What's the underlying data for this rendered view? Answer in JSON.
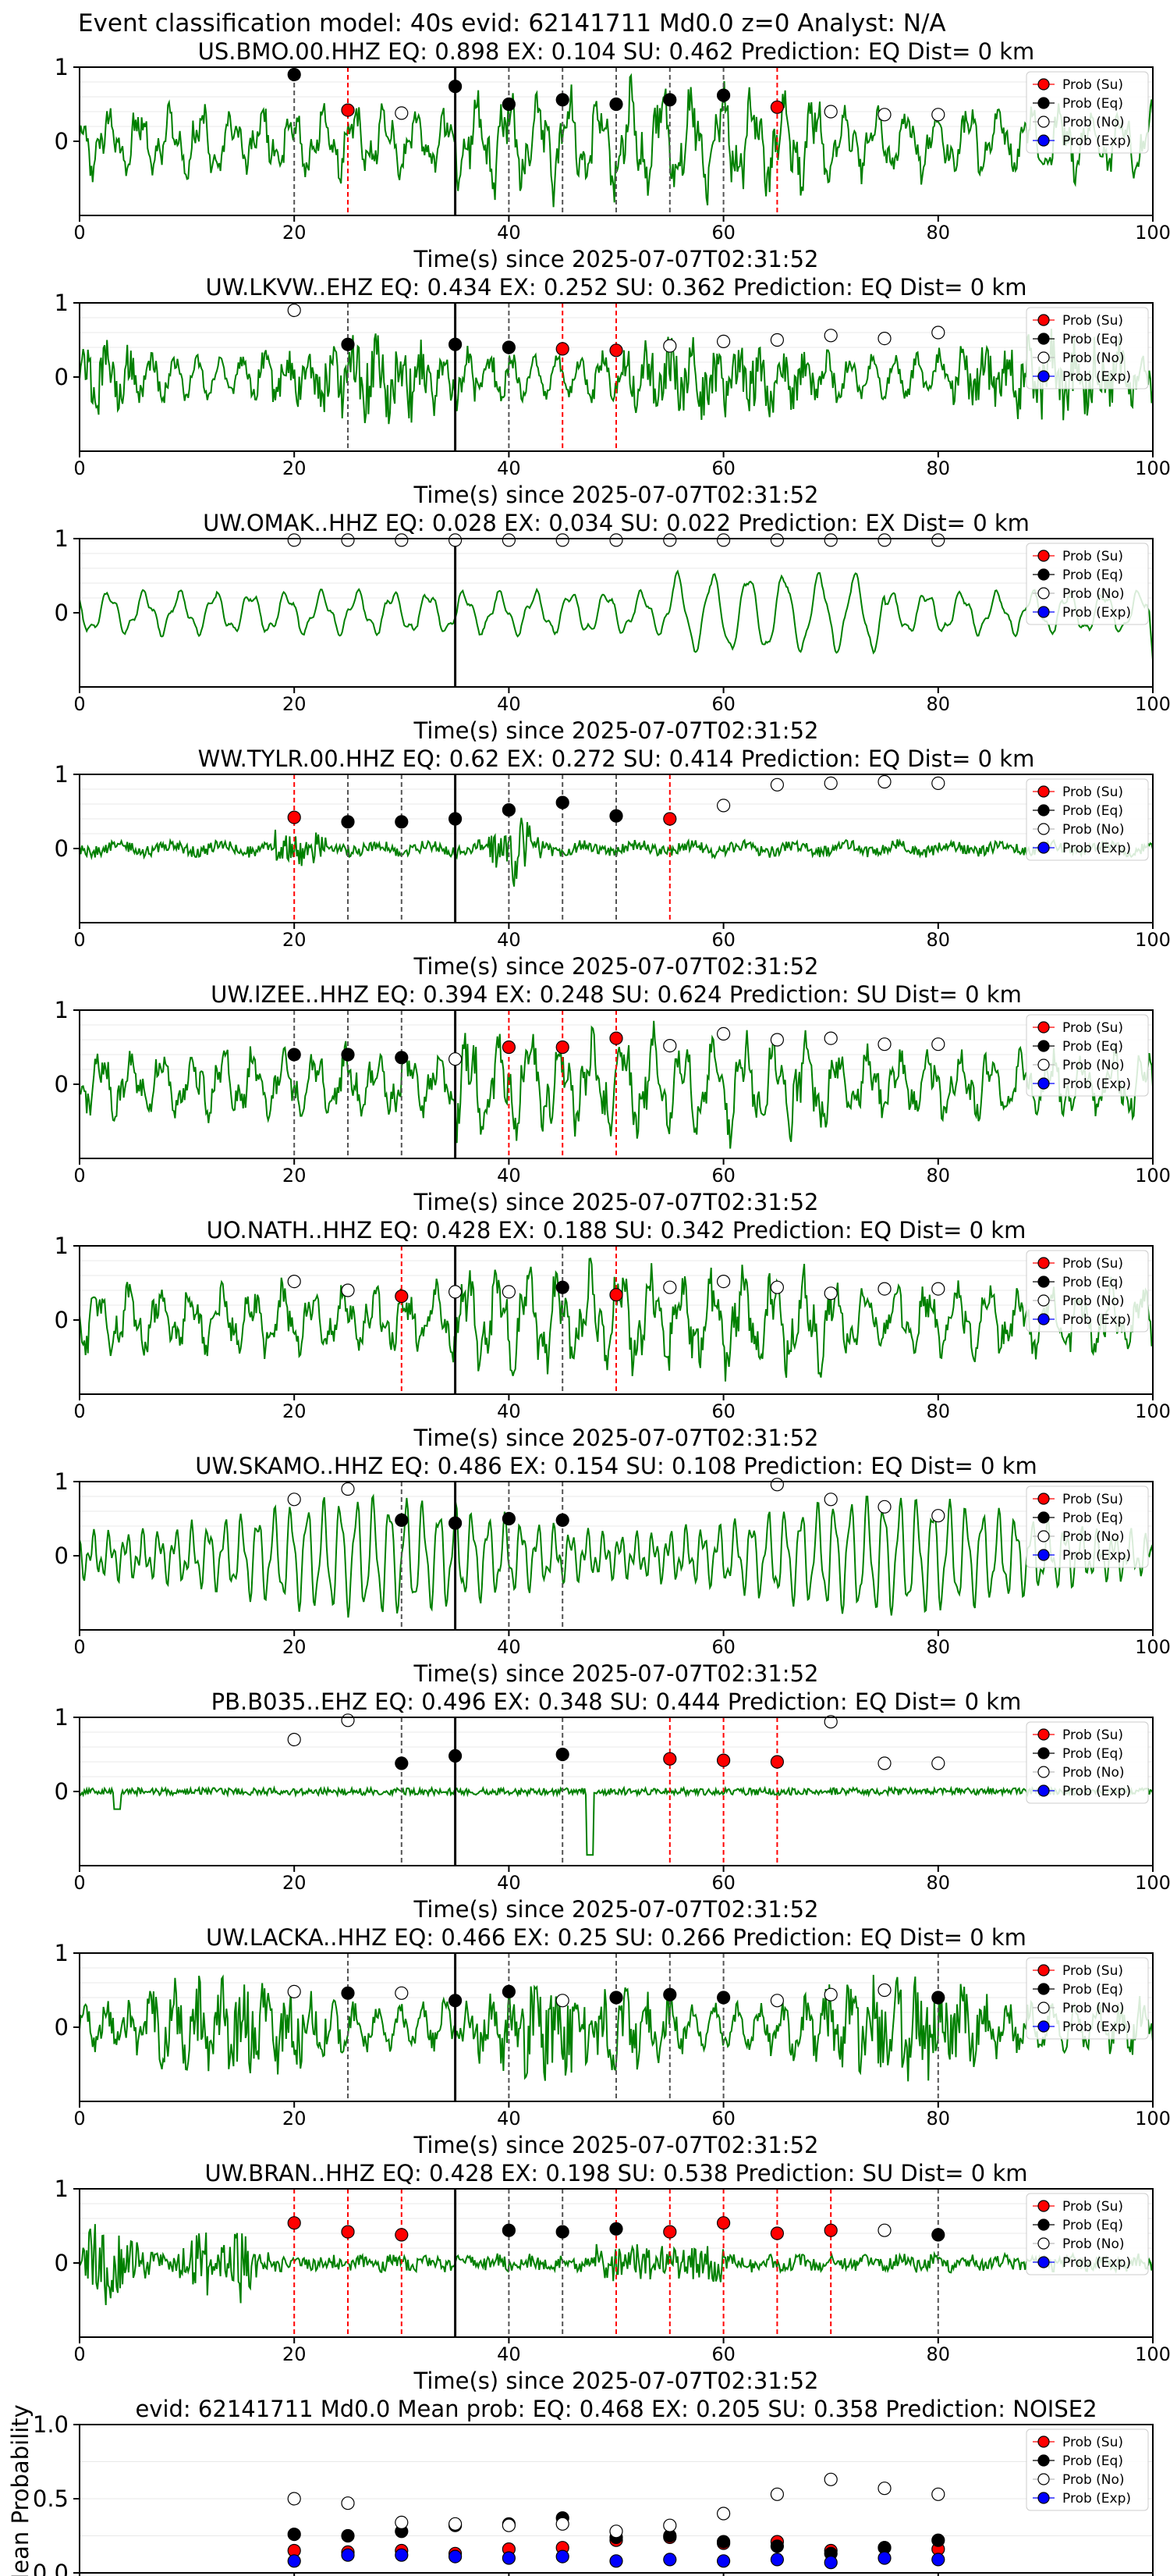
{
  "figure_title": "Event classification model: 40s evid: 62141711 Md0.0 z=0 Analyst: N/A",
  "colors": {
    "waveform": "#008000",
    "su": "#ff0000",
    "eq": "#000000",
    "no": "#ffffff",
    "exp": "#0000ff",
    "su_line": "#ff0000",
    "eq_line": "#555555",
    "origin_line": "#000000"
  },
  "legend_labels": [
    "Prob (Su)",
    "Prob (Eq)",
    "Prob (No)",
    "Prob (Exp)"
  ],
  "xlabel": "Time(s) since 2025-07-07T02:31:52",
  "xticks": [
    "0",
    "20",
    "40",
    "60",
    "80",
    "100"
  ],
  "yticks": [
    "0",
    "1"
  ],
  "origin_time_s": 35,
  "chart_data": [
    {
      "type": "line",
      "title": "US.BMO.00.HHZ   EQ: 0.898  EX: 0.104  SU: 0.462   Prediction: EQ    Dist= 0 km",
      "xlim": [
        0,
        100
      ],
      "ylim": [
        -1,
        1
      ],
      "waveform_style": "broadband",
      "su_lines": [
        25,
        65
      ],
      "eq_lines": [
        20,
        35,
        40,
        45,
        50,
        55,
        60
      ],
      "points": [
        {
          "t": 20,
          "c": "eq",
          "v": 0.9
        },
        {
          "t": 25,
          "c": "su",
          "v": 0.42
        },
        {
          "t": 30,
          "c": "no",
          "v": 0.38
        },
        {
          "t": 35,
          "c": "eq",
          "v": 0.74
        },
        {
          "t": 40,
          "c": "eq",
          "v": 0.5
        },
        {
          "t": 45,
          "c": "eq",
          "v": 0.56
        },
        {
          "t": 50,
          "c": "eq",
          "v": 0.5
        },
        {
          "t": 55,
          "c": "eq",
          "v": 0.56
        },
        {
          "t": 60,
          "c": "eq",
          "v": 0.62
        },
        {
          "t": 65,
          "c": "su",
          "v": 0.46
        },
        {
          "t": 70,
          "c": "no",
          "v": 0.4
        },
        {
          "t": 75,
          "c": "no",
          "v": 0.36
        },
        {
          "t": 80,
          "c": "no",
          "v": 0.36
        }
      ]
    },
    {
      "type": "line",
      "title": "UW.LKVW..EHZ   EQ: 0.434  EX: 0.252  SU: 0.362   Prediction: EQ    Dist= 0 km",
      "xlim": [
        0,
        100
      ],
      "ylim": [
        -1,
        1
      ],
      "waveform_style": "noisy",
      "su_lines": [
        45,
        50
      ],
      "eq_lines": [
        25,
        35,
        40
      ],
      "points": [
        {
          "t": 20,
          "c": "no",
          "v": 0.9
        },
        {
          "t": 25,
          "c": "eq",
          "v": 0.44
        },
        {
          "t": 35,
          "c": "eq",
          "v": 0.44
        },
        {
          "t": 40,
          "c": "eq",
          "v": 0.4
        },
        {
          "t": 45,
          "c": "su",
          "v": 0.38
        },
        {
          "t": 50,
          "c": "su",
          "v": 0.36
        },
        {
          "t": 55,
          "c": "no",
          "v": 0.42
        },
        {
          "t": 60,
          "c": "no",
          "v": 0.48
        },
        {
          "t": 65,
          "c": "no",
          "v": 0.5
        },
        {
          "t": 70,
          "c": "no",
          "v": 0.56
        },
        {
          "t": 75,
          "c": "no",
          "v": 0.52
        },
        {
          "t": 80,
          "c": "no",
          "v": 0.6
        }
      ]
    },
    {
      "type": "line",
      "title": "UW.OMAK..HHZ   EQ: 0.028  EX: 0.034  SU: 0.022   Prediction: EX    Dist= 0 km",
      "xlim": [
        0,
        100
      ],
      "ylim": [
        -1,
        1
      ],
      "waveform_style": "smooth",
      "su_lines": [],
      "eq_lines": [
        35
      ],
      "points": [
        {
          "t": 20,
          "c": "no",
          "v": 0.98
        },
        {
          "t": 25,
          "c": "no",
          "v": 0.98
        },
        {
          "t": 30,
          "c": "no",
          "v": 0.98
        },
        {
          "t": 35,
          "c": "no",
          "v": 0.98
        },
        {
          "t": 40,
          "c": "no",
          "v": 0.98
        },
        {
          "t": 45,
          "c": "no",
          "v": 0.98
        },
        {
          "t": 50,
          "c": "no",
          "v": 0.98
        },
        {
          "t": 55,
          "c": "no",
          "v": 0.98
        },
        {
          "t": 60,
          "c": "no",
          "v": 0.98
        },
        {
          "t": 65,
          "c": "no",
          "v": 0.98
        },
        {
          "t": 70,
          "c": "no",
          "v": 0.98
        },
        {
          "t": 75,
          "c": "no",
          "v": 0.98
        },
        {
          "t": 80,
          "c": "no",
          "v": 0.98
        }
      ]
    },
    {
      "type": "line",
      "title": "WW.TYLR.00.HHZ   EQ: 0.62  EX: 0.272  SU: 0.414   Prediction: EQ    Dist= 0 km",
      "xlim": [
        0,
        100
      ],
      "ylim": [
        -1,
        1
      ],
      "waveform_style": "quiet_burst",
      "su_lines": [
        20,
        55
      ],
      "eq_lines": [
        25,
        30,
        35,
        40,
        45,
        50
      ],
      "points": [
        {
          "t": 20,
          "c": "su",
          "v": 0.42
        },
        {
          "t": 25,
          "c": "eq",
          "v": 0.36
        },
        {
          "t": 30,
          "c": "eq",
          "v": 0.36
        },
        {
          "t": 35,
          "c": "eq",
          "v": 0.4
        },
        {
          "t": 40,
          "c": "eq",
          "v": 0.52
        },
        {
          "t": 45,
          "c": "eq",
          "v": 0.62
        },
        {
          "t": 50,
          "c": "eq",
          "v": 0.44
        },
        {
          "t": 55,
          "c": "su",
          "v": 0.4
        },
        {
          "t": 60,
          "c": "no",
          "v": 0.58
        },
        {
          "t": 65,
          "c": "no",
          "v": 0.86
        },
        {
          "t": 70,
          "c": "no",
          "v": 0.88
        },
        {
          "t": 75,
          "c": "no",
          "v": 0.9
        },
        {
          "t": 80,
          "c": "no",
          "v": 0.88
        }
      ]
    },
    {
      "type": "line",
      "title": "UW.IZEE..HHZ   EQ: 0.394  EX: 0.248  SU: 0.624   Prediction: SU    Dist= 0 km",
      "xlim": [
        0,
        100
      ],
      "ylim": [
        -1,
        1
      ],
      "waveform_style": "broadband",
      "su_lines": [
        40,
        45,
        50
      ],
      "eq_lines": [
        20,
        25,
        30,
        35
      ],
      "points": [
        {
          "t": 20,
          "c": "eq",
          "v": 0.4
        },
        {
          "t": 25,
          "c": "eq",
          "v": 0.4
        },
        {
          "t": 30,
          "c": "eq",
          "v": 0.36
        },
        {
          "t": 35,
          "c": "no",
          "v": 0.34
        },
        {
          "t": 40,
          "c": "su",
          "v": 0.5
        },
        {
          "t": 45,
          "c": "su",
          "v": 0.5
        },
        {
          "t": 50,
          "c": "su",
          "v": 0.62
        },
        {
          "t": 55,
          "c": "no",
          "v": 0.52
        },
        {
          "t": 60,
          "c": "no",
          "v": 0.68
        },
        {
          "t": 65,
          "c": "no",
          "v": 0.6
        },
        {
          "t": 70,
          "c": "no",
          "v": 0.62
        },
        {
          "t": 75,
          "c": "no",
          "v": 0.54
        },
        {
          "t": 80,
          "c": "no",
          "v": 0.54
        }
      ]
    },
    {
      "type": "line",
      "title": "UO.NATH..HHZ   EQ: 0.428  EX: 0.188  SU: 0.342   Prediction: EQ    Dist= 0 km",
      "xlim": [
        0,
        100
      ],
      "ylim": [
        -1,
        1
      ],
      "waveform_style": "broadband",
      "su_lines": [
        30,
        50
      ],
      "eq_lines": [
        35,
        45
      ],
      "points": [
        {
          "t": 20,
          "c": "no",
          "v": 0.52
        },
        {
          "t": 25,
          "c": "no",
          "v": 0.4
        },
        {
          "t": 30,
          "c": "su",
          "v": 0.32
        },
        {
          "t": 35,
          "c": "no",
          "v": 0.38
        },
        {
          "t": 40,
          "c": "no",
          "v": 0.38
        },
        {
          "t": 45,
          "c": "eq",
          "v": 0.44
        },
        {
          "t": 50,
          "c": "su",
          "v": 0.34
        },
        {
          "t": 55,
          "c": "no",
          "v": 0.44
        },
        {
          "t": 60,
          "c": "no",
          "v": 0.52
        },
        {
          "t": 65,
          "c": "no",
          "v": 0.44
        },
        {
          "t": 70,
          "c": "no",
          "v": 0.36
        },
        {
          "t": 75,
          "c": "no",
          "v": 0.42
        },
        {
          "t": 80,
          "c": "no",
          "v": 0.42
        }
      ]
    },
    {
      "type": "line",
      "title": "UW.SKAMO..HHZ   EQ: 0.486  EX: 0.154  SU: 0.108   Prediction: EQ    Dist= 0 km",
      "xlim": [
        0,
        100
      ],
      "ylim": [
        -1,
        1
      ],
      "waveform_style": "oscillating",
      "su_lines": [],
      "eq_lines": [
        30,
        35,
        40,
        45
      ],
      "points": [
        {
          "t": 20,
          "c": "no",
          "v": 0.76
        },
        {
          "t": 25,
          "c": "no",
          "v": 0.9
        },
        {
          "t": 30,
          "c": "eq",
          "v": 0.48
        },
        {
          "t": 35,
          "c": "eq",
          "v": 0.44
        },
        {
          "t": 40,
          "c": "eq",
          "v": 0.5
        },
        {
          "t": 45,
          "c": "eq",
          "v": 0.48
        },
        {
          "t": 65,
          "c": "no",
          "v": 0.96
        },
        {
          "t": 70,
          "c": "no",
          "v": 0.76
        },
        {
          "t": 75,
          "c": "no",
          "v": 0.66
        },
        {
          "t": 80,
          "c": "no",
          "v": 0.54
        }
      ]
    },
    {
      "type": "line",
      "title": "PB.B035..EHZ   EQ: 0.496  EX: 0.348  SU: 0.444   Prediction: EQ    Dist= 0 km",
      "xlim": [
        0,
        100
      ],
      "ylim": [
        -1,
        1
      ],
      "waveform_style": "flat_spike",
      "su_lines": [
        55,
        60,
        65
      ],
      "eq_lines": [
        30,
        35,
        45
      ],
      "points": [
        {
          "t": 20,
          "c": "no",
          "v": 0.7
        },
        {
          "t": 25,
          "c": "no",
          "v": 0.96
        },
        {
          "t": 30,
          "c": "eq",
          "v": 0.38
        },
        {
          "t": 35,
          "c": "eq",
          "v": 0.48
        },
        {
          "t": 45,
          "c": "eq",
          "v": 0.5
        },
        {
          "t": 55,
          "c": "su",
          "v": 0.44
        },
        {
          "t": 60,
          "c": "su",
          "v": 0.42
        },
        {
          "t": 65,
          "c": "su",
          "v": 0.4
        },
        {
          "t": 70,
          "c": "no",
          "v": 0.94
        },
        {
          "t": 75,
          "c": "no",
          "v": 0.38
        },
        {
          "t": 80,
          "c": "no",
          "v": 0.38
        }
      ]
    },
    {
      "type": "line",
      "title": "UW.LACKA..HHZ   EQ: 0.466  EX: 0.25  SU: 0.266   Prediction: EQ    Dist= 0 km",
      "xlim": [
        0,
        100
      ],
      "ylim": [
        -1,
        1
      ],
      "waveform_style": "noisy_large",
      "su_lines": [],
      "eq_lines": [
        25,
        35,
        40,
        50,
        55,
        60,
        80
      ],
      "points": [
        {
          "t": 20,
          "c": "no",
          "v": 0.48
        },
        {
          "t": 25,
          "c": "eq",
          "v": 0.46
        },
        {
          "t": 30,
          "c": "no",
          "v": 0.46
        },
        {
          "t": 35,
          "c": "eq",
          "v": 0.36
        },
        {
          "t": 40,
          "c": "eq",
          "v": 0.48
        },
        {
          "t": 45,
          "c": "no",
          "v": 0.36
        },
        {
          "t": 50,
          "c": "eq",
          "v": 0.4
        },
        {
          "t": 55,
          "c": "eq",
          "v": 0.44
        },
        {
          "t": 60,
          "c": "eq",
          "v": 0.4
        },
        {
          "t": 65,
          "c": "no",
          "v": 0.36
        },
        {
          "t": 70,
          "c": "no",
          "v": 0.44
        },
        {
          "t": 75,
          "c": "no",
          "v": 0.5
        },
        {
          "t": 80,
          "c": "eq",
          "v": 0.4
        }
      ]
    },
    {
      "type": "line",
      "title": "UW.BRAN..HHZ   EQ: 0.428  EX: 0.198  SU: 0.538   Prediction: SU    Dist= 0 km",
      "xlim": [
        0,
        100
      ],
      "ylim": [
        -1,
        1
      ],
      "waveform_style": "bursty",
      "su_lines": [
        20,
        25,
        30,
        50,
        55,
        60,
        65,
        70
      ],
      "eq_lines": [
        35,
        40,
        45,
        80
      ],
      "points": [
        {
          "t": 20,
          "c": "su",
          "v": 0.54
        },
        {
          "t": 25,
          "c": "su",
          "v": 0.42
        },
        {
          "t": 30,
          "c": "su",
          "v": 0.38
        },
        {
          "t": 40,
          "c": "eq",
          "v": 0.44
        },
        {
          "t": 45,
          "c": "eq",
          "v": 0.42
        },
        {
          "t": 50,
          "c": "eq",
          "v": 0.46
        },
        {
          "t": 55,
          "c": "su",
          "v": 0.42
        },
        {
          "t": 60,
          "c": "su",
          "v": 0.54
        },
        {
          "t": 65,
          "c": "su",
          "v": 0.4
        },
        {
          "t": 70,
          "c": "su",
          "v": 0.44
        },
        {
          "t": 75,
          "c": "no",
          "v": 0.44
        },
        {
          "t": 80,
          "c": "eq",
          "v": 0.38
        }
      ]
    },
    {
      "type": "scatter",
      "title": "evid: 62141711  Md0.0   Mean prob:   EQ: 0.468  EX: 0.205  SU: 0.358   Prediction: NOISE2",
      "ylabel": "Mean Probability",
      "xlim": [
        0,
        100
      ],
      "ylim": [
        0,
        1
      ],
      "yticks": [
        "0.0",
        "0.5",
        "1.0"
      ],
      "x": [
        20,
        25,
        30,
        35,
        40,
        45,
        50,
        55,
        60,
        65,
        70,
        75,
        80
      ],
      "series": [
        {
          "name": "Prob (Su)",
          "key": "su",
          "values": [
            0.15,
            0.14,
            0.15,
            0.13,
            0.16,
            0.17,
            0.22,
            0.24,
            0.2,
            0.21,
            0.15,
            0.17,
            0.16
          ]
        },
        {
          "name": "Prob (Eq)",
          "key": "eq",
          "values": [
            0.26,
            0.25,
            0.28,
            0.32,
            0.33,
            0.37,
            0.24,
            0.25,
            0.21,
            0.18,
            0.13,
            0.17,
            0.22
          ]
        },
        {
          "name": "Prob (No)",
          "key": "no",
          "values": [
            0.5,
            0.47,
            0.34,
            0.33,
            0.32,
            0.33,
            0.28,
            0.32,
            0.4,
            0.53,
            0.63,
            0.57,
            0.53
          ]
        },
        {
          "name": "Prob (Exp)",
          "key": "exp",
          "values": [
            0.08,
            0.12,
            0.12,
            0.11,
            0.1,
            0.11,
            0.08,
            0.09,
            0.08,
            0.09,
            0.07,
            0.1,
            0.09
          ]
        }
      ]
    }
  ]
}
